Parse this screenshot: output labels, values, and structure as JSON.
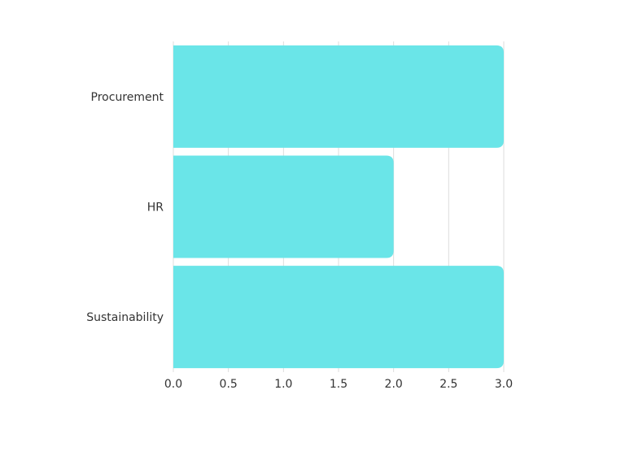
{
  "colors": {
    "bar": "#6ae5e8",
    "grid": "#dddddd",
    "text": "#333333",
    "background": "#ffffff"
  },
  "chart_data": {
    "type": "bar",
    "orientation": "horizontal",
    "title": "",
    "xlabel": "",
    "ylabel": "",
    "categories": [
      "Procurement",
      "HR",
      "Sustainability"
    ],
    "values": [
      3.0,
      2.0,
      3.0
    ],
    "xlim": [
      0,
      3.0
    ],
    "x_ticks": [
      0.0,
      0.5,
      1.0,
      1.5,
      2.0,
      2.5,
      3.0
    ],
    "x_tick_labels": [
      "0.0",
      "0.5",
      "1.0",
      "1.5",
      "2.0",
      "2.5",
      "3.0"
    ],
    "grid": true,
    "legend": "none"
  }
}
